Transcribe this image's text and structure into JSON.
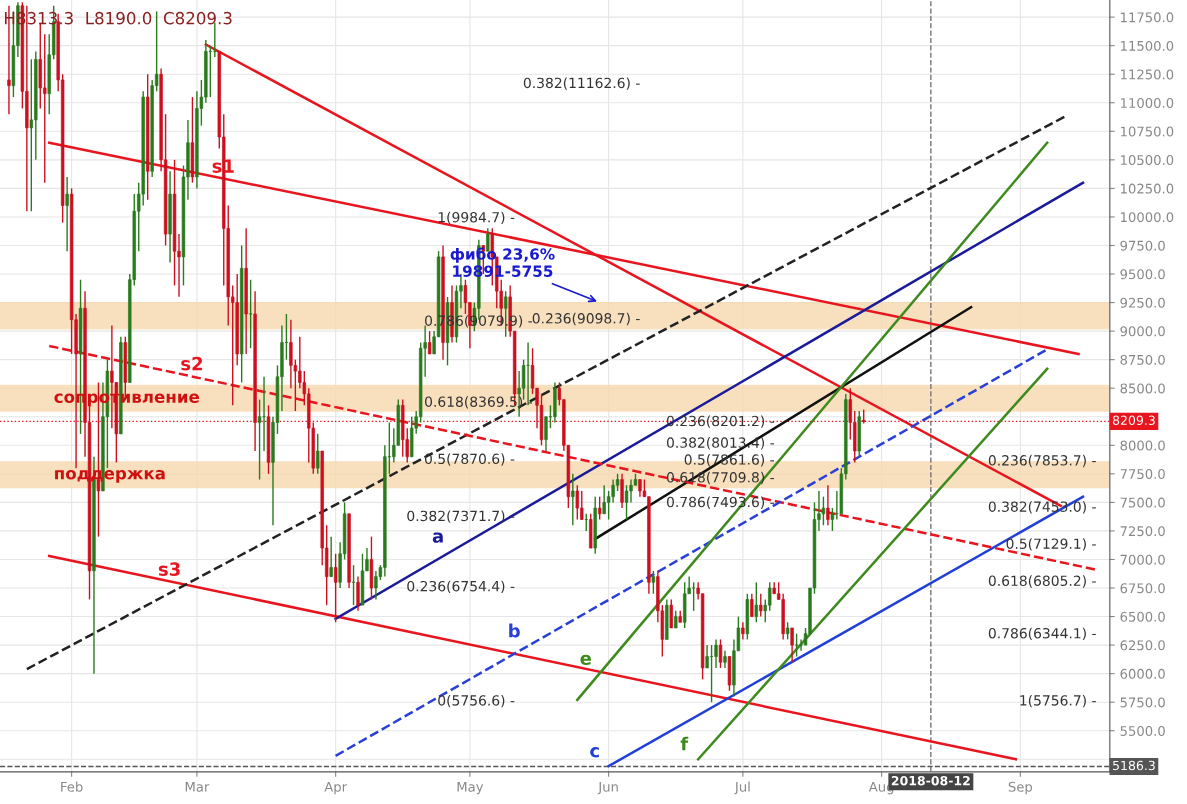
{
  "chart_data": {
    "type": "candlestick",
    "x": [
      "2018-01-18",
      "2018-01-19",
      "2018-01-20",
      "2018-01-21",
      "2018-01-22",
      "2018-01-23",
      "2018-01-24",
      "2018-01-25",
      "2018-01-26",
      "2018-01-27",
      "2018-01-28",
      "2018-01-29",
      "2018-01-30",
      "2018-01-31",
      "2018-02-01",
      "2018-02-02",
      "2018-02-03",
      "2018-02-04",
      "2018-02-05",
      "2018-02-06",
      "2018-02-07",
      "2018-02-08",
      "2018-02-09",
      "2018-02-10",
      "2018-02-11",
      "2018-02-12",
      "2018-02-13",
      "2018-02-14",
      "2018-02-15",
      "2018-02-16",
      "2018-02-17",
      "2018-02-18",
      "2018-02-19",
      "2018-02-20",
      "2018-02-21",
      "2018-02-22",
      "2018-02-23",
      "2018-02-24",
      "2018-02-25",
      "2018-02-26",
      "2018-02-27",
      "2018-02-28",
      "2018-03-01",
      "2018-03-02",
      "2018-03-03",
      "2018-03-04",
      "2018-03-05",
      "2018-03-06",
      "2018-03-07",
      "2018-03-08",
      "2018-03-09",
      "2018-03-10",
      "2018-03-11",
      "2018-03-12",
      "2018-03-13",
      "2018-03-14",
      "2018-03-15",
      "2018-03-16",
      "2018-03-17",
      "2018-03-18",
      "2018-03-19",
      "2018-03-20",
      "2018-03-21",
      "2018-03-22",
      "2018-03-23",
      "2018-03-24",
      "2018-03-25",
      "2018-03-26",
      "2018-03-27",
      "2018-03-28",
      "2018-03-29",
      "2018-03-30",
      "2018-03-31",
      "2018-04-01",
      "2018-04-02",
      "2018-04-03",
      "2018-04-04",
      "2018-04-05",
      "2018-04-06",
      "2018-04-07",
      "2018-04-08",
      "2018-04-09",
      "2018-04-10",
      "2018-04-11",
      "2018-04-12",
      "2018-04-13",
      "2018-04-14",
      "2018-04-15",
      "2018-04-16",
      "2018-04-17",
      "2018-04-18",
      "2018-04-19",
      "2018-04-20",
      "2018-04-21",
      "2018-04-22",
      "2018-04-23",
      "2018-04-24",
      "2018-04-25",
      "2018-04-26",
      "2018-04-27",
      "2018-04-28",
      "2018-04-29",
      "2018-04-30",
      "2018-05-01",
      "2018-05-02",
      "2018-05-03",
      "2018-05-04",
      "2018-05-05",
      "2018-05-06",
      "2018-05-07",
      "2018-05-08",
      "2018-05-09",
      "2018-05-10",
      "2018-05-11",
      "2018-05-12",
      "2018-05-13",
      "2018-05-14",
      "2018-05-15",
      "2018-05-16",
      "2018-05-17",
      "2018-05-18",
      "2018-05-19",
      "2018-05-20",
      "2018-05-21",
      "2018-05-22",
      "2018-05-23",
      "2018-05-24",
      "2018-05-25",
      "2018-05-26",
      "2018-05-27",
      "2018-05-28",
      "2018-05-29",
      "2018-05-30",
      "2018-05-31",
      "2018-06-01",
      "2018-06-02",
      "2018-06-03",
      "2018-06-04",
      "2018-06-05",
      "2018-06-06",
      "2018-06-07",
      "2018-06-08",
      "2018-06-09",
      "2018-06-10",
      "2018-06-11",
      "2018-06-12",
      "2018-06-13",
      "2018-06-14",
      "2018-06-15",
      "2018-06-16",
      "2018-06-17",
      "2018-06-18",
      "2018-06-19",
      "2018-06-20",
      "2018-06-21",
      "2018-06-22",
      "2018-06-23",
      "2018-06-24",
      "2018-06-25",
      "2018-06-26",
      "2018-06-27",
      "2018-06-28",
      "2018-06-29",
      "2018-06-30",
      "2018-07-01",
      "2018-07-02",
      "2018-07-03",
      "2018-07-04",
      "2018-07-05",
      "2018-07-06",
      "2018-07-07",
      "2018-07-08",
      "2018-07-09",
      "2018-07-10",
      "2018-07-11",
      "2018-07-12",
      "2018-07-13",
      "2018-07-14",
      "2018-07-15",
      "2018-07-16",
      "2018-07-17",
      "2018-07-18",
      "2018-07-19",
      "2018-07-20",
      "2018-07-21",
      "2018-07-22",
      "2018-07-23",
      "2018-07-24",
      "2018-07-25",
      "2018-07-26",
      "2018-07-27",
      "2018-07-28"
    ],
    "ohlc": [
      [
        11200,
        11850,
        10900,
        11150
      ],
      [
        11150,
        11800,
        11050,
        11500
      ],
      [
        11500,
        11880,
        11400,
        11850
      ],
      [
        11850,
        11880,
        10950,
        11100
      ],
      [
        11100,
        11850,
        10050,
        10780
      ],
      [
        10780,
        11380,
        10050,
        10850
      ],
      [
        10850,
        11450,
        10500,
        11380
      ],
      [
        11380,
        11700,
        10950,
        11130
      ],
      [
        11130,
        11600,
        10300,
        11080
      ],
      [
        11080,
        11600,
        10900,
        11420
      ],
      [
        11420,
        11850,
        11380,
        11710
      ],
      [
        11710,
        11780,
        11100,
        11200
      ],
      [
        11200,
        11250,
        9950,
        10100
      ],
      [
        10100,
        10350,
        9700,
        10200
      ],
      [
        10200,
        10250,
        8800,
        9100
      ],
      [
        9100,
        9150,
        7800,
        8800
      ],
      [
        8800,
        9450,
        8100,
        9200
      ],
      [
        9200,
        9350,
        7900,
        8200
      ],
      [
        8200,
        8350,
        6650,
        6900
      ],
      [
        6900,
        7900,
        6000,
        7700
      ],
      [
        7700,
        8550,
        7200,
        7600
      ],
      [
        7600,
        8550,
        7600,
        8250
      ],
      [
        8250,
        8750,
        7800,
        8650
      ],
      [
        8650,
        9050,
        8150,
        8550
      ],
      [
        8550,
        8550,
        7850,
        8100
      ],
      [
        8100,
        8950,
        8100,
        8900
      ],
      [
        8900,
        8950,
        8400,
        8550
      ],
      [
        8550,
        9500,
        8550,
        9450
      ],
      [
        9450,
        10200,
        9400,
        10050
      ],
      [
        10050,
        10300,
        9700,
        10200
      ],
      [
        10200,
        11100,
        10100,
        11050
      ],
      [
        11050,
        11250,
        10150,
        10400
      ],
      [
        10400,
        11200,
        10350,
        11150
      ],
      [
        11150,
        11800,
        11100,
        11250
      ],
      [
        11250,
        11300,
        10400,
        10500
      ],
      [
        10500,
        10900,
        9750,
        9850
      ],
      [
        9850,
        10400,
        9600,
        10200
      ],
      [
        10200,
        10500,
        9400,
        9700
      ],
      [
        9700,
        9850,
        9300,
        9650
      ],
      [
        9650,
        10450,
        9400,
        10350
      ],
      [
        10350,
        10850,
        10150,
        10650
      ],
      [
        10650,
        11050,
        10300,
        10350
      ],
      [
        10350,
        11100,
        10250,
        10950
      ],
      [
        10950,
        11200,
        10800,
        11050
      ],
      [
        11050,
        11550,
        11000,
        11450
      ],
      [
        11450,
        11500,
        11050,
        11450
      ],
      [
        11450,
        11700,
        11400,
        11450
      ],
      [
        11450,
        11450,
        10600,
        10700
      ],
      [
        10700,
        10900,
        9400,
        9900
      ],
      [
        9900,
        10100,
        9050,
        9300
      ],
      [
        9300,
        9400,
        8350,
        9250
      ],
      [
        9250,
        9500,
        8700,
        8800
      ],
      [
        8800,
        9750,
        8550,
        9550
      ],
      [
        9550,
        9900,
        8800,
        9150
      ],
      [
        9150,
        9450,
        8850,
        9150
      ],
      [
        9150,
        9350,
        7950,
        8200
      ],
      [
        8200,
        8400,
        7700,
        8250
      ],
      [
        8250,
        8600,
        7950,
        8250
      ],
      [
        8250,
        8350,
        7750,
        7850
      ],
      [
        7850,
        8250,
        7300,
        8200
      ],
      [
        8200,
        8700,
        8100,
        8600
      ],
      [
        8600,
        9050,
        8300,
        8900
      ],
      [
        8900,
        9150,
        8750,
        8900
      ],
      [
        8900,
        9100,
        8500,
        8700
      ],
      [
        8700,
        8750,
        8300,
        8650
      ],
      [
        8650,
        8950,
        8500,
        8550
      ],
      [
        8550,
        8650,
        8350,
        8450
      ],
      [
        8450,
        8500,
        7850,
        8150
      ],
      [
        8150,
        8200,
        7750,
        7800
      ],
      [
        7800,
        8100,
        7750,
        7950
      ],
      [
        7950,
        7950,
        6950,
        7100
      ],
      [
        7100,
        7300,
        6600,
        6850
      ],
      [
        6850,
        7200,
        6850,
        6930
      ],
      [
        6930,
        7050,
        6450,
        6800
      ],
      [
        6800,
        7150,
        6750,
        7050
      ],
      [
        7050,
        7500,
        7000,
        7400
      ],
      [
        7400,
        7400,
        6750,
        6800
      ],
      [
        6800,
        6950,
        6600,
        6800
      ],
      [
        6800,
        6850,
        6550,
        6600
      ],
      [
        6600,
        7050,
        6600,
        6900
      ],
      [
        6900,
        7100,
        6900,
        7000
      ],
      [
        7000,
        7200,
        6650,
        6750
      ],
      [
        6750,
        6900,
        6650,
        6850
      ],
      [
        6850,
        6950,
        6820,
        6930
      ],
      [
        6930,
        8000,
        6850,
        7900
      ],
      [
        7900,
        8200,
        7750,
        7900
      ],
      [
        7900,
        8150,
        7850,
        8000
      ],
      [
        8000,
        8400,
        8000,
        8350
      ],
      [
        8350,
        8400,
        7900,
        8050
      ],
      [
        8050,
        8150,
        7850,
        7900
      ],
      [
        7900,
        8250,
        7900,
        8150
      ],
      [
        8150,
        8300,
        8100,
        8250
      ],
      [
        8250,
        8900,
        8200,
        8850
      ],
      [
        8850,
        9050,
        8600,
        8900
      ],
      [
        8900,
        9000,
        8800,
        8800
      ],
      [
        8800,
        9000,
        8800,
        8950
      ],
      [
        8950,
        9700,
        8950,
        9650
      ],
      [
        9650,
        9750,
        8750,
        8900
      ],
      [
        8900,
        9300,
        8700,
        9250
      ],
      [
        9250,
        9400,
        8900,
        8950
      ],
      [
        8950,
        9400,
        8900,
        9350
      ],
      [
        9350,
        9500,
        9200,
        9400
      ],
      [
        9400,
        9450,
        9150,
        9250
      ],
      [
        9250,
        9250,
        8850,
        9050
      ],
      [
        9050,
        9250,
        9000,
        9200
      ],
      [
        9200,
        9800,
        9100,
        9750
      ],
      [
        9750,
        9750,
        9500,
        9700
      ],
      [
        9700,
        9900,
        9700,
        9850
      ],
      [
        9850,
        9900,
        9400,
        9650
      ],
      [
        9650,
        9650,
        9200,
        9350
      ],
      [
        9350,
        9450,
        9050,
        9200
      ],
      [
        9200,
        9350,
        8950,
        9300
      ],
      [
        9300,
        9400,
        8950,
        9000
      ],
      [
        9000,
        9000,
        8350,
        8450
      ],
      [
        8450,
        8650,
        8250,
        8500
      ],
      [
        8500,
        8750,
        8400,
        8700
      ],
      [
        8700,
        8900,
        8350,
        8700
      ],
      [
        8700,
        8850,
        8450,
        8500
      ],
      [
        8500,
        8500,
        8150,
        8350
      ],
      [
        8350,
        8450,
        8000,
        8050
      ],
      [
        8050,
        8250,
        7950,
        8250
      ],
      [
        8250,
        8350,
        8150,
        8250
      ],
      [
        8250,
        8550,
        8200,
        8500
      ],
      [
        8500,
        8550,
        8350,
        8400
      ],
      [
        8400,
        8400,
        7950,
        8000
      ],
      [
        8000,
        8000,
        7450,
        7550
      ],
      [
        7550,
        7750,
        7300,
        7600
      ],
      [
        7600,
        7650,
        7350,
        7450
      ],
      [
        7450,
        7600,
        7350,
        7350
      ],
      [
        7350,
        7400,
        7250,
        7350
      ],
      [
        7350,
        7400,
        7100,
        7100
      ],
      [
        7100,
        7550,
        7050,
        7450
      ],
      [
        7450,
        7550,
        7350,
        7400
      ],
      [
        7400,
        7650,
        7400,
        7500
      ],
      [
        7500,
        7600,
        7350,
        7550
      ],
      [
        7550,
        7700,
        7500,
        7650
      ],
      [
        7650,
        7750,
        7600,
        7700
      ],
      [
        7700,
        7750,
        7450,
        7500
      ],
      [
        7500,
        7650,
        7350,
        7600
      ],
      [
        7600,
        7700,
        7500,
        7650
      ],
      [
        7650,
        7750,
        7650,
        7700
      ],
      [
        7700,
        7700,
        7550,
        7600
      ],
      [
        7600,
        7700,
        7550,
        7550
      ],
      [
        7550,
        7550,
        6700,
        6800
      ],
      [
        6800,
        6900,
        6700,
        6850
      ],
      [
        6850,
        6900,
        6450,
        6550
      ],
      [
        6550,
        6600,
        6150,
        6300
      ],
      [
        6300,
        6650,
        6300,
        6600
      ],
      [
        6600,
        6650,
        6400,
        6400
      ],
      [
        6400,
        6550,
        6400,
        6500
      ],
      [
        6500,
        6550,
        6450,
        6450
      ],
      [
        6450,
        6800,
        6400,
        6700
      ],
      [
        6700,
        6850,
        6700,
        6750
      ],
      [
        6750,
        6800,
        6550,
        6750
      ],
      [
        6750,
        6800,
        6650,
        6700
      ],
      [
        6700,
        6700,
        5950,
        6050
      ],
      [
        6050,
        6250,
        6050,
        6150
      ],
      [
        6150,
        6250,
        5750,
        6150
      ],
      [
        6150,
        6300,
        6050,
        6250
      ],
      [
        6250,
        6300,
        6050,
        6100
      ],
      [
        6100,
        6200,
        6050,
        6150
      ],
      [
        6150,
        6150,
        5850,
        5900
      ],
      [
        5900,
        6300,
        5800,
        6200
      ],
      [
        6200,
        6500,
        6200,
        6400
      ],
      [
        6400,
        6450,
        6300,
        6350
      ],
      [
        6350,
        6700,
        6300,
        6650
      ],
      [
        6650,
        6700,
        6500,
        6500
      ],
      [
        6500,
        6800,
        6450,
        6600
      ],
      [
        6600,
        6700,
        6500,
        6550
      ],
      [
        6550,
        6650,
        6450,
        6600
      ],
      [
        6600,
        6800,
        6550,
        6750
      ],
      [
        6750,
        6800,
        6700,
        6700
      ],
      [
        6700,
        6800,
        6650,
        6650
      ],
      [
        6650,
        6700,
        6300,
        6350
      ],
      [
        6350,
        6450,
        6300,
        6400
      ],
      [
        6400,
        6400,
        6100,
        6250
      ],
      [
        6250,
        6350,
        6150,
        6250
      ],
      [
        6250,
        6300,
        6200,
        6250
      ],
      [
        6250,
        6400,
        6250,
        6350
      ],
      [
        6350,
        6750,
        6350,
        6750
      ],
      [
        6750,
        7500,
        6700,
        7350
      ],
      [
        7350,
        7600,
        7250,
        7400
      ],
      [
        7400,
        7550,
        7300,
        7450
      ],
      [
        7450,
        7650,
        7300,
        7350
      ],
      [
        7350,
        7450,
        7250,
        7400
      ],
      [
        7400,
        7600,
        7350,
        7400
      ],
      [
        7400,
        7800,
        7400,
        7750
      ],
      [
        7750,
        8450,
        7700,
        8400
      ],
      [
        8400,
        8500,
        8050,
        8200
      ],
      [
        8200,
        8300,
        7850,
        7950
      ],
      [
        7950,
        8300,
        7900,
        8250
      ],
      [
        8220,
        8313.3,
        8190.0,
        8209.3
      ]
    ],
    "series": [
      {
        "type": "line",
        "x": [
          "2018-01-27",
          "2018-09-14"
        ],
        "values": [
          10650,
          8800
        ],
        "color": "#e8141e",
        "line_style": "solid"
      },
      {
        "type": "line",
        "x": [
          "2018-01-27",
          "2018-08-31"
        ],
        "values": [
          7030,
          5250
        ],
        "color": "#e8141e",
        "line_style": "solid"
      },
      {
        "type": "line",
        "x": [
          "2018-03-03",
          "2018-09-10"
        ],
        "values": [
          11510,
          7470
        ],
        "color": "#e8141e",
        "line_style": "solid"
      },
      {
        "type": "line",
        "x": [
          "2018-04-01",
          "2018-09-15"
        ],
        "values": [
          6480,
          10300
        ],
        "color": "#1a1a9a",
        "line_style": "solid"
      },
      {
        "type": "line",
        "x": [
          "2018-06-01",
          "2018-09-15"
        ],
        "values": [
          5190,
          7550
        ],
        "color": "#1f3fd6",
        "line_style": "solid"
      },
      {
        "type": "line",
        "x": [
          "2018-05-29",
          "2018-08-21"
        ],
        "values": [
          7180,
          9210
        ],
        "color": "#111111",
        "line_style": "solid"
      },
      {
        "type": "line",
        "x": [
          "2018-01-22",
          "2018-09-11"
        ],
        "values": [
          6040,
          10880
        ],
        "color": "#222222",
        "line_style": "dashed"
      },
      {
        "type": "line",
        "x": [
          "2018-01-27",
          "2018-09-18"
        ],
        "values": [
          8870,
          6910
        ],
        "color": "#e8141e",
        "line_style": "dashed"
      },
      {
        "type": "line",
        "x": [
          "2018-04-01",
          "2018-09-07"
        ],
        "values": [
          5280,
          8840
        ],
        "color": "#2a3fd6",
        "line_style": "dashed"
      },
      {
        "type": "line",
        "x": [
          "2018-05-25",
          "2018-09-07"
        ],
        "values": [
          5770,
          10650
        ],
        "color": "#3f8a1e",
        "line_style": "solid"
      },
      {
        "type": "line",
        "x": [
          "2018-06-21",
          "2018-09-07"
        ],
        "values": [
          5250,
          8670
        ],
        "color": "#3f8a1e",
        "line_style": "solid"
      }
    ],
    "xlim": [
      "2018-01-16",
      "2018-09-21"
    ],
    "xticks": [
      {
        "value": "2018-02-01",
        "label": "Feb"
      },
      {
        "value": "2018-03-01",
        "label": "Mar"
      },
      {
        "value": "2018-04-01",
        "label": "Apr"
      },
      {
        "value": "2018-05-01",
        "label": "May"
      },
      {
        "value": "2018-06-01",
        "label": "Jun"
      },
      {
        "value": "2018-07-01",
        "label": "Jul"
      },
      {
        "value": "2018-08-01",
        "label": "Aug"
      },
      {
        "value": "2018-09-01",
        "label": "Sep"
      }
    ],
    "ylim": [
      5140,
      11900
    ],
    "yticks": [
      {
        "value": 5250,
        "label": null
      },
      {
        "value": 5500,
        "label": "5500.0"
      },
      {
        "value": 5750,
        "label": "5750.0"
      },
      {
        "value": 6000,
        "label": "6000.0"
      },
      {
        "value": 6250,
        "label": "6250.0"
      },
      {
        "value": 6500,
        "label": "6500.0"
      },
      {
        "value": 6750,
        "label": "6750.0"
      },
      {
        "value": 7000,
        "label": "7000.0"
      },
      {
        "value": 7250,
        "label": "7250.0"
      },
      {
        "value": 7500,
        "label": "7500.0"
      },
      {
        "value": 7750,
        "label": "7750.0"
      },
      {
        "value": 8000,
        "label": "8000.0"
      },
      {
        "value": 8250,
        "label": null
      },
      {
        "value": 8500,
        "label": "8500.0"
      },
      {
        "value": 8750,
        "label": "8750.0"
      },
      {
        "value": 9000,
        "label": "9000.0"
      },
      {
        "value": 9250,
        "label": "9250.0"
      },
      {
        "value": 9500,
        "label": "9500.0"
      },
      {
        "value": 9750,
        "label": "9750.0"
      },
      {
        "value": 10000,
        "label": "10000.0"
      },
      {
        "value": 10250,
        "label": "10250.0"
      },
      {
        "value": 10500,
        "label": "10500.0"
      },
      {
        "value": 10750,
        "label": "10750.0"
      },
      {
        "value": 11000,
        "label": "11000.0"
      },
      {
        "value": 11250,
        "label": "11250.0"
      },
      {
        "value": 11500,
        "label": "11500.0"
      },
      {
        "value": 11750,
        "label": "11750.0"
      }
    ],
    "grid": true,
    "ref_lines": [
      {
        "axis": "y",
        "value": 8209.3,
        "label": "8209.3",
        "color": "#e8141e",
        "line_style": "dotted"
      },
      {
        "axis": "y",
        "value": 5186.3,
        "label": "5186.3",
        "color": "#555555",
        "line_style": "dashed"
      },
      {
        "axis": "x",
        "value": "2018-08-12",
        "label": "2018-08-12",
        "color": "#777777",
        "line_style": "dashed"
      }
    ],
    "bands": [
      {
        "axis": "y",
        "from": 9020,
        "to": 9250,
        "color": "#f7d9ae"
      },
      {
        "axis": "y",
        "from": 8300,
        "to": 8525,
        "label": "сопротивление",
        "color": "#f7d9ae"
      },
      {
        "axis": "y",
        "from": 7630,
        "to": 7855,
        "label": "поддержка",
        "color": "#f7d9ae"
      }
    ],
    "annotations": [
      "H8313.3  L8190.0  C8209.3",
      "0.382(11162.6) -",
      "1(9984.7) -",
      "0.786(9079.9) -",
      "0.618(8369.5) -",
      "0.5(7870.6) -",
      "0.382(7371.7) -",
      "0.236(6754.4) -",
      "0(5756.6) -",
      "0.236(9098.7) -",
      "0.236(8201.2) -",
      "0.382(8013.4) -",
      "0.5(7861.6) -",
      "0.618(7709.8) -",
      "0.786(7493.6) -",
      "0.236(7853.7) -",
      "0.382(7453.0) -",
      "0.5(7129.1) -",
      "0.618(6805.2) -",
      "0.786(6344.1) -",
      "1(5756.7) -",
      {
        "text": "фибо 23,6%\n19891-5755",
        "x": "2018-05-30",
        "y": 9250
      },
      {
        "text": "s1",
        "x": "2018-03-10",
        "y": 10310
      },
      {
        "text": "s2",
        "x": "2018-03-03",
        "y": 8580
      },
      {
        "text": "s3",
        "x": "2018-02-26",
        "y": 6780
      },
      {
        "text": "a",
        "x": "2018-04-27",
        "y": 7070
      },
      {
        "text": "b",
        "x": "2018-05-14",
        "y": 6240
      },
      {
        "text": "c",
        "x": "2018-06-01",
        "y": 5190
      },
      {
        "text": "e",
        "x": "2018-05-30",
        "y": 6000
      },
      {
        "text": "f",
        "x": "2018-06-21",
        "y": 5250
      }
    ]
  }
}
